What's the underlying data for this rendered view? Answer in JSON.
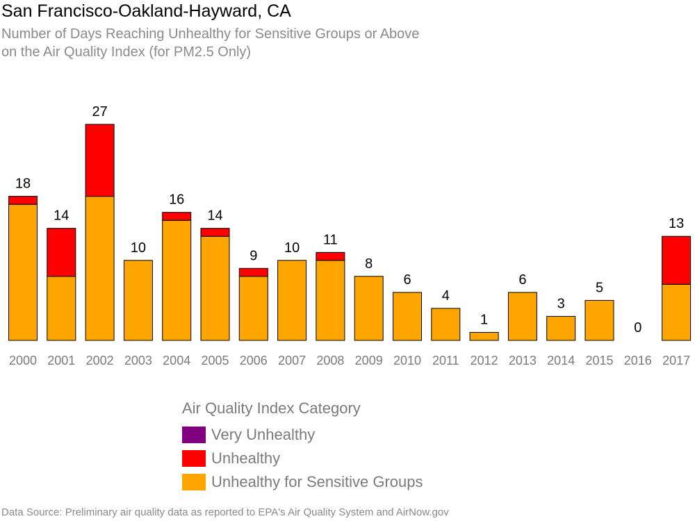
{
  "chart_data": {
    "type": "bar",
    "stacked": true,
    "title": "San Francisco-Oakland-Hayward, CA",
    "subtitle_lines": [
      "Number of Days Reaching Unhealthy for Sensitive Groups or Above",
      "on the Air Quality Index (for PM2.5 Only)"
    ],
    "categories": [
      "2000",
      "2001",
      "2002",
      "2003",
      "2004",
      "2005",
      "2006",
      "2007",
      "2008",
      "2009",
      "2010",
      "2011",
      "2012",
      "2013",
      "2014",
      "2015",
      "2016",
      "2017"
    ],
    "series": [
      {
        "name": "Very Unhealthy",
        "color": "#800080",
        "values": [
          0,
          0,
          0,
          0,
          0,
          0,
          0,
          0,
          0,
          0,
          0,
          0,
          0,
          0,
          0,
          0,
          0,
          0
        ]
      },
      {
        "name": "Unhealthy",
        "color": "#ff0000",
        "values": [
          1,
          6,
          9,
          0,
          1,
          1,
          1,
          0,
          1,
          0,
          0,
          0,
          0,
          0,
          0,
          0,
          0,
          6
        ]
      },
      {
        "name": "Unhealthy for Sensitive Groups",
        "color": "#ffa500",
        "values": [
          17,
          8,
          18,
          10,
          15,
          13,
          8,
          10,
          10,
          8,
          6,
          4,
          1,
          6,
          3,
          5,
          0,
          7
        ]
      }
    ],
    "totals": [
      18,
      14,
      27,
      10,
      16,
      14,
      9,
      10,
      11,
      8,
      6,
      4,
      1,
      6,
      3,
      5,
      0,
      13
    ],
    "ylim": [
      0,
      27
    ],
    "grid": false,
    "legend": {
      "title": "Air Quality Index Category",
      "placement": "bottom"
    },
    "xlabel": "",
    "ylabel": ""
  },
  "footer": {
    "source": "Data Source: Preliminary air quality data as reported to EPA's Air Quality System and AirNow.gov"
  }
}
